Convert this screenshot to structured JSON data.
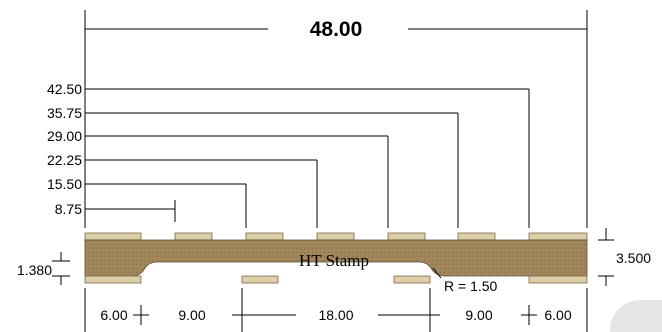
{
  "drawing": {
    "overall_width_label": "48.00",
    "part_label": "HT Stamp",
    "radius_label": "R = 1.50",
    "total_height_label": "3.500",
    "thickness_label": "1.380",
    "position_labels": [
      "42.50",
      "35.75",
      "29.00",
      "22.25",
      "15.50",
      "8.75"
    ],
    "bottom_dimensions": [
      "6.00",
      "9.00",
      "18.00",
      "9.00",
      "6.00"
    ],
    "colors": {
      "body": "#a0855a",
      "pad": "#dccfa8",
      "watermark": "#e6e6e6"
    }
  }
}
